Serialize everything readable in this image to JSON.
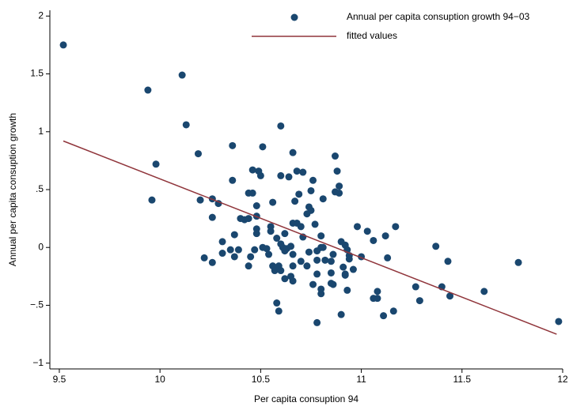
{
  "chart_data": {
    "type": "scatter",
    "x_label": "Per capita consuption 94",
    "y_label": "Annual per capita consuption growth",
    "xlim": [
      9.453,
      12
    ],
    "ylim": [
      -1.05,
      2.05
    ],
    "xticks": [
      9.5,
      10,
      10.5,
      11,
      11.5,
      12
    ],
    "yticks": [
      {
        "value": -1,
        "label": "−1"
      },
      {
        "value": -0.5,
        "label": "−.5"
      },
      0,
      {
        "value": 0.5,
        "label": ".5"
      },
      1,
      1.5,
      2
    ],
    "grid": false,
    "legend": "top-right",
    "series": [
      {
        "name": "Annual per capita consuption growth 94−03",
        "type": "scatter",
        "color": "#1a476f",
        "x": [
          9.52,
          9.94,
          10.11,
          10.13,
          9.98,
          9.96,
          10.19,
          10.2,
          10.36,
          10.51,
          10.6,
          10.66,
          10.36,
          10.46,
          10.49,
          10.5,
          10.6,
          10.64,
          10.68,
          10.71,
          10.76,
          10.87,
          10.88,
          10.89,
          10.87,
          10.89,
          10.44,
          10.46,
          10.26,
          10.26,
          10.29,
          10.69,
          10.75,
          10.81,
          10.74,
          10.75,
          10.56,
          10.48,
          10.48,
          10.4,
          10.42,
          10.44,
          10.67,
          10.66,
          10.68,
          10.7,
          10.73,
          10.77,
          10.71,
          10.62,
          10.55,
          10.55,
          10.48,
          10.37,
          10.31,
          10.22,
          10.26,
          10.31,
          10.35,
          10.37,
          10.39,
          10.44,
          10.45,
          10.47,
          10.51,
          10.53,
          10.54,
          10.56,
          10.57,
          10.58,
          10.6,
          10.61,
          10.62,
          10.63,
          10.65,
          10.66,
          10.66,
          10.59,
          10.6,
          10.65,
          10.66,
          10.62,
          10.73,
          10.74,
          10.78,
          10.8,
          10.81,
          10.78,
          10.78,
          10.82,
          10.85,
          10.86,
          10.85,
          10.9,
          10.92,
          10.93,
          10.94,
          10.91,
          10.92,
          10.96,
          10.94,
          10.92,
          10.86,
          10.93,
          10.98,
          11.03,
          11.06,
          11.0,
          11.12,
          11.17,
          11.13,
          11.08,
          11.06,
          11.08,
          11.11,
          11.16,
          11.27,
          11.29,
          11.37,
          11.43,
          11.4,
          11.44,
          11.61,
          11.78,
          11.98,
          10.78,
          10.9,
          10.58,
          10.59,
          10.8,
          10.8,
          10.85,
          10.76,
          10.48,
          10.7,
          10.8
        ],
        "values": [
          1.75,
          1.36,
          1.49,
          1.06,
          0.72,
          0.41,
          0.81,
          0.41,
          0.88,
          0.87,
          1.05,
          0.82,
          0.58,
          0.67,
          0.66,
          0.62,
          0.62,
          0.61,
          0.66,
          0.65,
          0.58,
          0.79,
          0.66,
          0.53,
          0.48,
          0.47,
          0.47,
          0.47,
          0.42,
          0.26,
          0.38,
          0.46,
          0.49,
          0.42,
          0.35,
          0.32,
          0.39,
          0.36,
          0.27,
          0.25,
          0.24,
          0.25,
          0.4,
          0.21,
          0.21,
          0.18,
          0.29,
          0.2,
          0.09,
          0.12,
          0.18,
          0.14,
          0.12,
          0.11,
          0.05,
          -0.09,
          -0.13,
          -0.05,
          -0.02,
          -0.08,
          -0.02,
          -0.16,
          -0.08,
          -0.02,
          0.0,
          -0.01,
          -0.06,
          -0.16,
          -0.2,
          0.08,
          0.03,
          0.0,
          -0.03,
          -0.01,
          0.01,
          -0.06,
          -0.16,
          -0.16,
          -0.2,
          -0.25,
          -0.29,
          -0.27,
          -0.16,
          -0.04,
          -0.03,
          0.0,
          0.0,
          -0.11,
          -0.23,
          -0.11,
          -0.12,
          -0.06,
          -0.22,
          0.05,
          0.02,
          -0.02,
          -0.07,
          -0.17,
          -0.23,
          -0.19,
          -0.1,
          -0.24,
          -0.32,
          -0.37,
          0.18,
          0.14,
          0.06,
          -0.08,
          0.1,
          0.18,
          -0.09,
          -0.44,
          -0.44,
          -0.38,
          -0.59,
          -0.55,
          -0.34,
          -0.46,
          0.01,
          -0.12,
          -0.34,
          -0.42,
          -0.38,
          -0.13,
          -0.64,
          -0.65,
          -0.58,
          -0.48,
          -0.55,
          -0.4,
          -0.36,
          -0.31,
          -0.32,
          0.16,
          -0.12,
          0.1
        ]
      },
      {
        "name": "fitted values",
        "type": "line",
        "color": "#90353b",
        "x": [
          9.52,
          11.97
        ],
        "values": [
          0.92,
          -0.75
        ]
      }
    ]
  }
}
